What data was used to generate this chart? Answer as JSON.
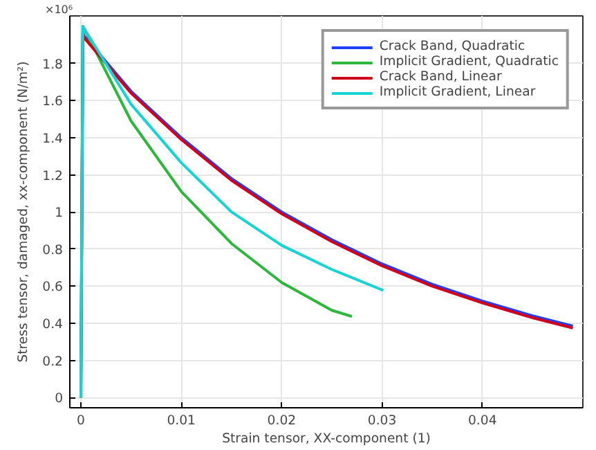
{
  "chart_data": {
    "type": "line",
    "xlabel": "Strain tensor, XX-component (1)",
    "ylabel": "Stress tensor, damaged, xx-component (N/m²)",
    "annotations": [
      "×10⁶"
    ],
    "xlim": [
      -0.0011,
      0.05
    ],
    "ylim": [
      -0.055,
      2.056
    ],
    "xticks": [
      0,
      0.01,
      0.02,
      0.03,
      0.04
    ],
    "yticks": [
      0,
      0.2,
      0.4,
      0.6,
      0.8,
      1,
      1.2,
      1.4,
      1.6,
      1.8
    ],
    "grid": true,
    "legend": "top right",
    "line_style": "solid",
    "marker": "none",
    "series": [
      {
        "name": "Crack Band, Quadratic",
        "color": "#1f3fff",
        "x": [
          0,
          0.0002,
          0.0003,
          0.005,
          0.01,
          0.015,
          0.02,
          0.025,
          0.03,
          0.035,
          0.04,
          0.045,
          0.049
        ],
        "values": [
          0,
          1.97,
          1.95,
          1.65,
          1.4,
          1.18,
          1.0,
          0.85,
          0.72,
          0.61,
          0.52,
          0.44,
          0.385
        ]
      },
      {
        "name": "Implicit Gradient, Quadratic",
        "color": "#2db83d",
        "x": [
          0,
          0.0002,
          0.0003,
          0.005,
          0.01,
          0.015,
          0.02,
          0.025,
          0.027
        ],
        "values": [
          0,
          2.0,
          1.99,
          1.49,
          1.11,
          0.83,
          0.62,
          0.47,
          0.437
        ]
      },
      {
        "name": "Crack Band, Linear",
        "color": "#d0021b",
        "x": [
          0,
          0.0002,
          0.0003,
          0.005,
          0.01,
          0.015,
          0.02,
          0.025,
          0.03,
          0.035,
          0.04,
          0.045,
          0.049
        ],
        "values": [
          0,
          1.96,
          1.94,
          1.64,
          1.39,
          1.17,
          0.99,
          0.84,
          0.71,
          0.6,
          0.51,
          0.43,
          0.375
        ]
      },
      {
        "name": "Implicit Gradient, Linear",
        "color": "#17d4d4",
        "x": [
          0,
          0.0002,
          0.0003,
          0.005,
          0.01,
          0.015,
          0.02,
          0.025,
          0.03,
          0.0301
        ],
        "values": [
          0,
          2.0,
          1.99,
          1.58,
          1.265,
          1.0,
          0.82,
          0.69,
          0.58,
          0.575
        ]
      }
    ]
  }
}
